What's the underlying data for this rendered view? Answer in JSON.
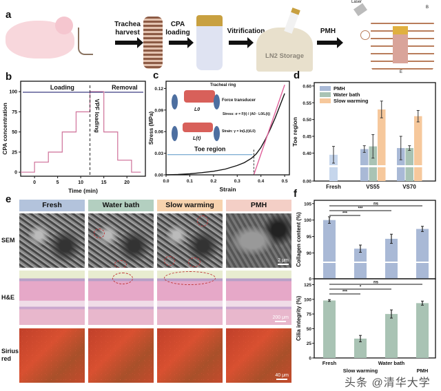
{
  "panels": {
    "a": "a",
    "b": "b",
    "c": "c",
    "d": "d",
    "e": "e",
    "f": "f"
  },
  "panel_a": {
    "steps": [
      "Trachea harvest",
      "CPA loading",
      "Vitrification",
      "PMH"
    ],
    "storage_label": "LN2 Storage",
    "laser_label": "Laser",
    "field_labels": [
      "B",
      "E"
    ]
  },
  "chart_data": [
    {
      "id": "b",
      "type": "line",
      "xlabel": "Time (min)",
      "ylabel": "CPA concentration",
      "xlim": [
        -3,
        24
      ],
      "ylim": [
        -5,
        113
      ],
      "xticks": [
        0,
        5,
        10,
        15,
        20
      ],
      "yticks": [
        0,
        25,
        50,
        75,
        100
      ],
      "x": [
        -3,
        0,
        0,
        3,
        3,
        6,
        6,
        9,
        9,
        12,
        12,
        15,
        15,
        18,
        18,
        21,
        21,
        23
      ],
      "y": [
        0,
        0,
        12.5,
        12.5,
        25,
        25,
        50,
        50,
        75,
        75,
        100,
        100,
        50,
        50,
        15,
        15,
        0,
        0
      ],
      "annotations": {
        "loading": "Loading",
        "removal": "Removal",
        "vpf": "VPF loading",
        "vline_x": 12,
        "boundary_x": 15
      },
      "color": "#d27aa0"
    },
    {
      "id": "c",
      "type": "line",
      "xlabel": "Strain",
      "ylabel": "Stress (MPa)",
      "xlim": [
        0,
        0.52
      ],
      "ylim": [
        0,
        0.13
      ],
      "xticks": [
        0.0,
        0.1,
        0.2,
        0.3,
        0.4,
        0.5
      ],
      "yticks": [
        0.0,
        0.03,
        0.06,
        0.09,
        0.12
      ],
      "series": [
        {
          "x": [
            0,
            0.05,
            0.1,
            0.15,
            0.2,
            0.25,
            0.3,
            0.33,
            0.36,
            0.38,
            0.4,
            0.42,
            0.44,
            0.46,
            0.48,
            0.5
          ],
          "y": [
            0,
            0.0005,
            0.0015,
            0.003,
            0.005,
            0.008,
            0.013,
            0.017,
            0.023,
            0.029,
            0.038,
            0.05,
            0.064,
            0.079,
            0.096,
            0.113
          ],
          "color": "#111111"
        },
        {
          "x": [
            0.37,
            0.5
          ],
          "y": [
            0,
            0.125
          ],
          "color": "#e0609a"
        }
      ],
      "annotations": {
        "toe": "Toe region",
        "toe_end": 0.37,
        "ring": "Tracheal ring",
        "transducer": "Force transducer",
        "l0": "L0",
        "lt": "L(t)",
        "stress_formula": "Stress: σ = F(t) / (A0 · L0/L(t))",
        "strain_formula": "Strain: γ = ln(L(t)/L0)"
      }
    },
    {
      "id": "d",
      "type": "bar",
      "ylabel": "Toe region",
      "categories": [
        "Fresh",
        "VS55",
        "VS70"
      ],
      "yticks": [
        0.0,
        0.4,
        0.45,
        0.5,
        0.55,
        0.6
      ],
      "ylim_upper": [
        0.37,
        0.61
      ],
      "axis_break": true,
      "legend_position": "top-left",
      "series": [
        {
          "name": "PMH",
          "color": "#a9b9d6",
          "values": [
            null,
            0.412,
            0.415
          ],
          "errors": [
            null,
            0.01,
            0.035
          ]
        },
        {
          "name": "Water bath",
          "color": "#a9c3b4",
          "values": [
            null,
            0.42,
            0.415
          ],
          "errors": [
            null,
            0.035,
            0.007
          ]
        },
        {
          "name": "Slow warming",
          "color": "#f6c89c",
          "values": [
            null,
            0.53,
            0.51
          ],
          "errors": [
            null,
            0.025,
            0.017
          ]
        }
      ],
      "fresh": {
        "value": 0.395,
        "error": 0.025,
        "color": "#c6d6ec"
      }
    },
    {
      "id": "f1",
      "type": "bar",
      "ylabel": "Collagen content (%)",
      "categories": [
        "Fresh",
        "Slow warming",
        "Water bath",
        "PMH"
      ],
      "values": [
        100,
        91.3,
        94.3,
        97.3
      ],
      "errors": [
        1,
        1.1,
        1.4,
        0.8
      ],
      "color": "#a9b9d6",
      "yticks": [
        0,
        90,
        95,
        100,
        105
      ],
      "ylim_upper": [
        88,
        106
      ],
      "axis_break": true,
      "significance": [
        {
          "from": 0,
          "to": 1,
          "label": "***"
        },
        {
          "from": 0,
          "to": 2,
          "label": "***"
        },
        {
          "from": 0,
          "to": 3,
          "label": "ns"
        }
      ]
    },
    {
      "id": "f2",
      "type": "bar",
      "ylabel": "Cilia integrity (%)",
      "categories": [
        "Fresh",
        "Slow warming",
        "Water bath",
        "PMH"
      ],
      "values": [
        98,
        33,
        75,
        93.5
      ],
      "errors": [
        1.5,
        5.5,
        7,
        3.5
      ],
      "color": "#a9c3b4",
      "yticks": [
        0,
        25,
        50,
        75,
        100,
        125
      ],
      "ylim": [
        0,
        135
      ],
      "significance": [
        {
          "from": 0,
          "to": 1,
          "label": "***"
        },
        {
          "from": 0,
          "to": 2,
          "label": "*"
        },
        {
          "from": 0,
          "to": 3,
          "label": "ns"
        }
      ]
    }
  ],
  "panel_e": {
    "columns": [
      {
        "label": "Fresh",
        "color": "#b3c3dc"
      },
      {
        "label": "Water bath",
        "color": "#b3cfc0"
      },
      {
        "label": "Slow warming",
        "color": "#f7d3ae"
      },
      {
        "label": "PMH",
        "color": "#f4cfc6"
      }
    ],
    "rows": [
      "SEM",
      "H&E",
      "Sirius red"
    ],
    "scale_bars": [
      "2 μm",
      "200 μm",
      "40 μm"
    ]
  },
  "watermark": "头条 @清华大学"
}
